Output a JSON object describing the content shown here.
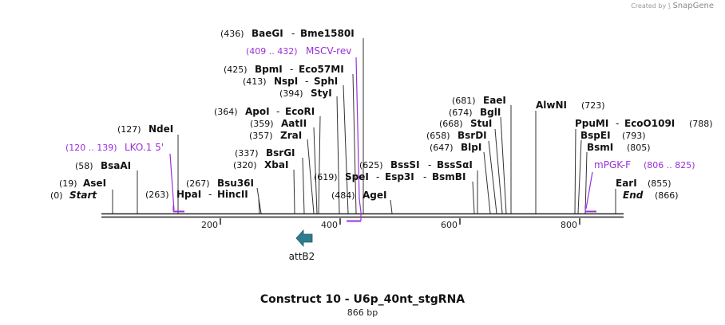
{
  "credit": {
    "prefix": "Created by",
    "brand": "SnapGene"
  },
  "title": "Construct 10 - U6p_40nt_stgRNA",
  "length_label": "866 bp",
  "colors": {
    "enzyme": "#111111",
    "primer": "#9b30d9",
    "feature": "#2e7d8f"
  },
  "ticks": [
    "200",
    "400",
    "600",
    "800"
  ],
  "sites": [
    {
      "id": "baegi",
      "pos": "(436)",
      "names": [
        "BaeGI",
        "Bme1580I"
      ],
      "bp": 436
    },
    {
      "id": "bpmi",
      "pos": "(425)",
      "names": [
        "BpmI",
        "Eco57MI"
      ],
      "bp": 425
    },
    {
      "id": "nspi",
      "pos": "(413)",
      "names": [
        "NspI",
        "SphI"
      ],
      "bp": 413
    },
    {
      "id": "styi",
      "pos": "(394)",
      "names": [
        "StyI"
      ],
      "bp": 394
    },
    {
      "id": "apoi",
      "pos": "(364)",
      "names": [
        "ApoI",
        "EcoRI"
      ],
      "bp": 364
    },
    {
      "id": "aatii",
      "pos": "(359)",
      "names": [
        "AatII"
      ],
      "bp": 359
    },
    {
      "id": "zrai",
      "pos": "(357)",
      "names": [
        "ZraI"
      ],
      "bp": 357
    },
    {
      "id": "bsrgi",
      "pos": "(337)",
      "names": [
        "BsrGI"
      ],
      "bp": 337
    },
    {
      "id": "xbai",
      "pos": "(320)",
      "names": [
        "XbaI"
      ],
      "bp": 320
    },
    {
      "id": "bsu36i",
      "pos": "(267)",
      "names": [
        "Bsu36I"
      ],
      "bp": 267
    },
    {
      "id": "hpai",
      "pos": "(263)",
      "names": [
        "HpaI",
        "HincII"
      ],
      "bp": 263
    },
    {
      "id": "ndei",
      "pos": "(127)",
      "names": [
        "NdeI"
      ],
      "bp": 127
    },
    {
      "id": "bsaai",
      "pos": "(58)",
      "names": [
        "BsaAI"
      ],
      "bp": 58
    },
    {
      "id": "asei",
      "pos": "(19)",
      "names": [
        "AseI"
      ],
      "bp": 19
    },
    {
      "id": "start",
      "pos": "(0)",
      "names": [
        "Start"
      ],
      "bp": 0
    },
    {
      "id": "eaei",
      "pos": "(681)",
      "names": [
        "EaeI"
      ],
      "bp": 681
    },
    {
      "id": "bgli",
      "pos": "(674)",
      "names": [
        "BglI"
      ],
      "bp": 674
    },
    {
      "id": "stui",
      "pos": "(668)",
      "names": [
        "StuI"
      ],
      "bp": 668
    },
    {
      "id": "bsrdi",
      "pos": "(658)",
      "names": [
        "BsrDI"
      ],
      "bp": 658
    },
    {
      "id": "blpi",
      "pos": "(647)",
      "names": [
        "BlpI"
      ],
      "bp": 647
    },
    {
      "id": "bsssi",
      "pos": "(625)",
      "names": [
        "BssSI",
        "BssSαI"
      ],
      "bp": 625
    },
    {
      "id": "spei",
      "pos": "(619)",
      "names": [
        "SpeI",
        "Esp3I",
        "BsmBI"
      ],
      "bp": 619
    },
    {
      "id": "agei",
      "pos": "(484)",
      "names": [
        "AgeI"
      ],
      "bp": 484
    },
    {
      "id": "alwni",
      "pos": "(723)",
      "names": [
        "AlwNI"
      ],
      "bp": 723
    },
    {
      "id": "ppumi",
      "pos": "(788)",
      "names": [
        "PpuMI",
        "EcoO109I"
      ],
      "bp": 788
    },
    {
      "id": "bspei",
      "pos": "(793)",
      "names": [
        "BspEI"
      ],
      "bp": 793
    },
    {
      "id": "bsmi",
      "pos": "(805)",
      "names": [
        "BsmI"
      ],
      "bp": 805
    },
    {
      "id": "eari",
      "pos": "(855)",
      "names": [
        "EarI"
      ],
      "bp": 855
    },
    {
      "id": "end",
      "pos": "(866)",
      "names": [
        "End"
      ],
      "bp": 866
    }
  ],
  "primers": [
    {
      "id": "mscv",
      "range": "(409 .. 432)",
      "name": "MSCV-rev"
    },
    {
      "id": "lko",
      "range": "(120 .. 139)",
      "name": "LKO.1 5'"
    },
    {
      "id": "mpgk",
      "name": "mPGK-F",
      "range": "(806 .. 825)"
    }
  ],
  "features": [
    {
      "id": "attb2",
      "name": "attB2"
    }
  ]
}
